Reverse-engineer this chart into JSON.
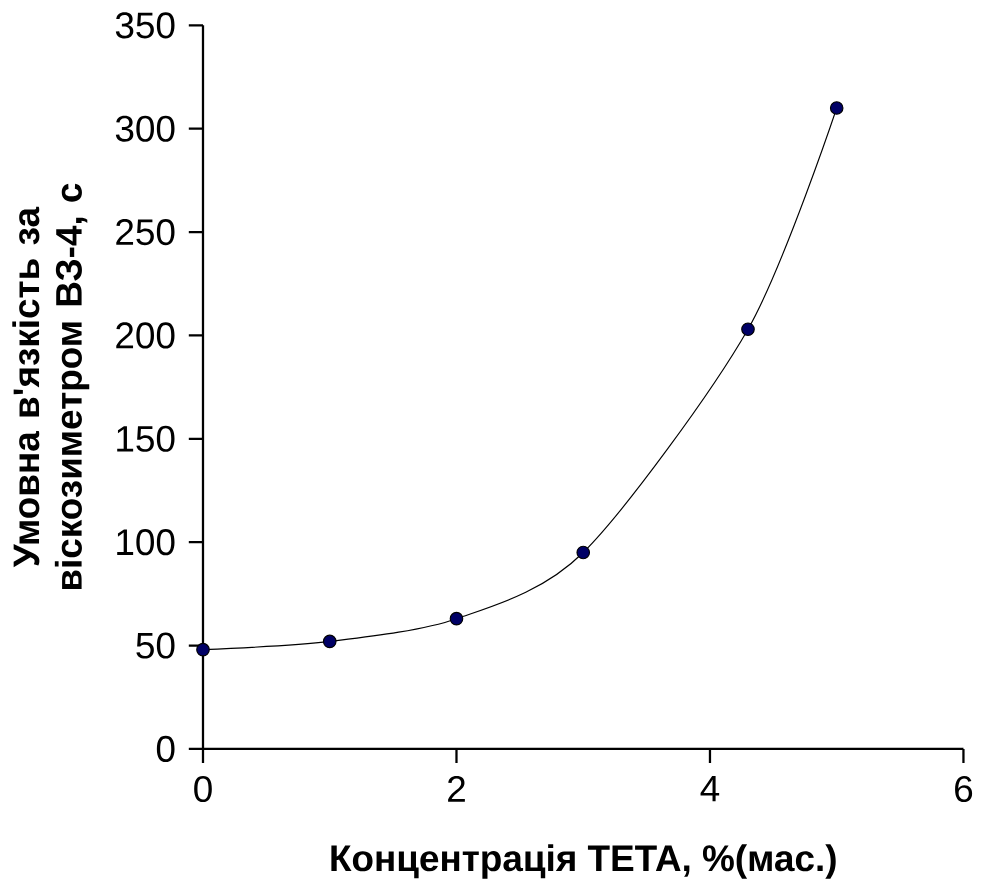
{
  "chart_data": {
    "type": "line",
    "xlabel": "Концентрація ТЕТА, %(мас.)",
    "ylabel": "Умовна в'язкість за віскозиметром ВЗ-4, с",
    "series": [
      {
        "color": "#000066",
        "x": [
          0,
          1,
          2,
          3,
          4.3,
          5
        ],
        "values": [
          48,
          52,
          63,
          95,
          203,
          310
        ]
      }
    ],
    "xlim": [
      0,
      6
    ],
    "xticks": [
      0,
      2,
      4,
      6
    ],
    "ylim": [
      0,
      350
    ],
    "yticks": [
      0,
      50,
      100,
      150,
      200,
      250,
      300,
      350
    ],
    "marker": "circle"
  }
}
